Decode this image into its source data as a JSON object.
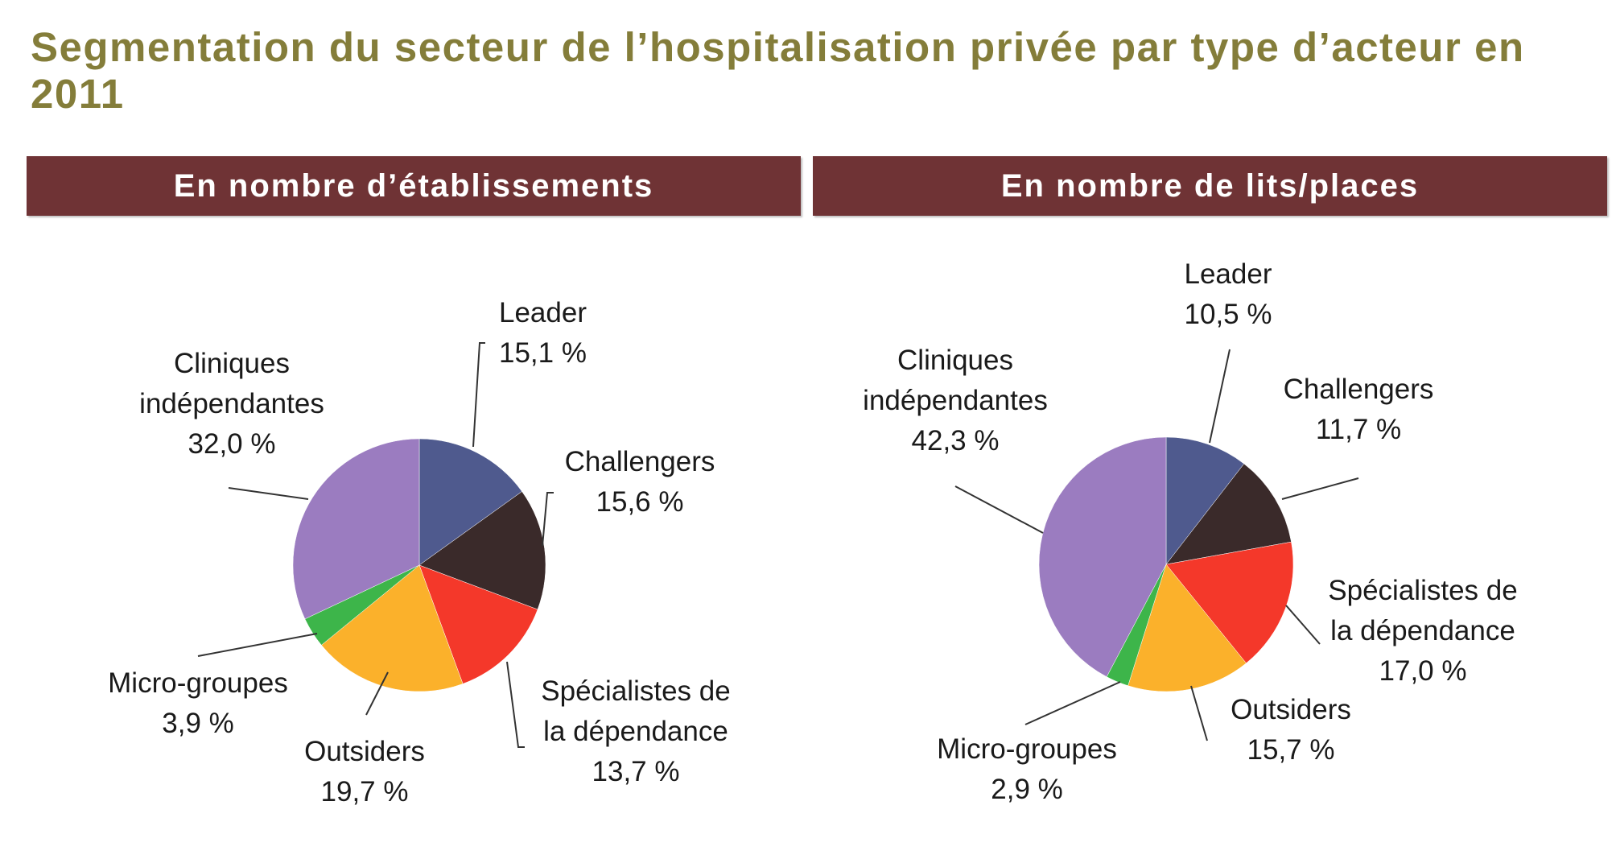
{
  "title": "Segmentation du secteur de l’hospitalisation privée par type d’acteur en 2011",
  "colors": {
    "title": "#847d3a",
    "header_bg": "#6f3335",
    "Leader": "#4f5a8e",
    "Challengers": "#3a2a2a",
    "Spécialistes de la dépendance": "#f4382a",
    "Outsiders": "#fbb12b",
    "Micro-groupes": "#3db54a",
    "Cliniques indépendantes": "#9b7cc0"
  },
  "chart_data": [
    {
      "type": "pie",
      "title": "En nombre d’établissements",
      "categories": [
        "Leader",
        "Challengers",
        "Spécialistes de la dépendance",
        "Outsiders",
        "Micro-groupes",
        "Cliniques indépendantes"
      ],
      "values": [
        15.1,
        15.6,
        13.7,
        19.7,
        3.9,
        32.0
      ],
      "labels": [
        {
          "lines": [
            "Leader",
            "15,1 %"
          ]
        },
        {
          "lines": [
            "Challengers",
            "15,6 %"
          ]
        },
        {
          "lines": [
            "Spécialistes de",
            "la dépendance",
            "13,7 %"
          ]
        },
        {
          "lines": [
            "Outsiders",
            "19,7 %"
          ]
        },
        {
          "lines": [
            "Micro-groupes",
            "3,9 %"
          ]
        },
        {
          "lines": [
            "Cliniques",
            "indépendantes",
            "32,0 %"
          ]
        }
      ]
    },
    {
      "type": "pie",
      "title": "En nombre de lits/places",
      "categories": [
        "Leader",
        "Challengers",
        "Spécialistes de la dépendance",
        "Outsiders",
        "Micro-groupes",
        "Cliniques indépendantes"
      ],
      "values": [
        10.5,
        11.7,
        17.0,
        15.7,
        2.9,
        42.3
      ],
      "labels": [
        {
          "lines": [
            "Leader",
            "10,5 %"
          ]
        },
        {
          "lines": [
            "Challengers",
            "11,7 %"
          ]
        },
        {
          "lines": [
            "Spécialistes de",
            "la dépendance",
            "17,0 %"
          ]
        },
        {
          "lines": [
            "Outsiders",
            "15,7 %"
          ]
        },
        {
          "lines": [
            "Micro-groupes",
            "2,9 %"
          ]
        },
        {
          "lines": [
            "Cliniques",
            "indépendantes",
            "42,3 %"
          ]
        }
      ]
    }
  ]
}
